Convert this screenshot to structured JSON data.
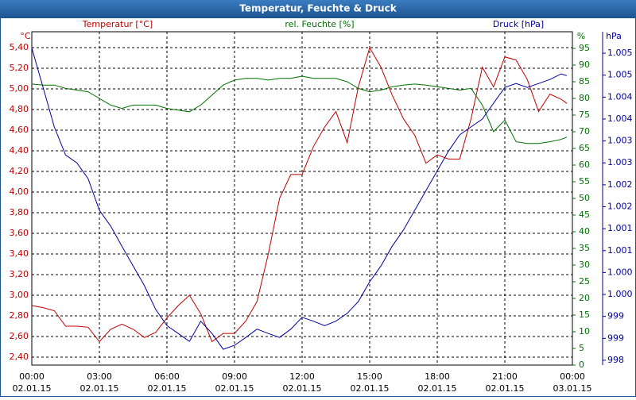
{
  "chart_data": {
    "type": "line",
    "title": "Temperatur, Feuchte & Druck",
    "x": [
      0,
      0.5,
      1,
      1.5,
      2,
      2.5,
      3,
      3.5,
      4,
      4.5,
      5,
      5.5,
      6,
      6.5,
      7,
      7.5,
      8,
      8.5,
      9,
      9.5,
      10,
      10.5,
      11,
      11.5,
      12,
      12.5,
      13,
      13.5,
      14,
      14.5,
      15,
      15.5,
      16,
      16.5,
      17,
      17.5,
      18,
      18.5,
      19,
      19.5,
      20,
      20.5,
      21,
      21.5,
      22,
      22.5,
      23,
      23.5,
      23.75
    ],
    "xlim": [
      0,
      24
    ],
    "xticks": [
      {
        "value": 0,
        "label": "00:00"
      },
      {
        "value": 3,
        "label": "03:00"
      },
      {
        "value": 6,
        "label": "06:00"
      },
      {
        "value": 9,
        "label": "09:00"
      },
      {
        "value": 12,
        "label": "12:00"
      },
      {
        "value": 15,
        "label": "15:00"
      },
      {
        "value": 18,
        "label": "18:00"
      },
      {
        "value": 21,
        "label": "21:00"
      },
      {
        "value": 24,
        "label": "00:00"
      }
    ],
    "xtick_dates": [
      "02.01.15",
      "02.01.15",
      "02.01.15",
      "02.01.15",
      "02.01.15",
      "02.01.15",
      "02.01.15",
      "02.01.15",
      "03.01.15"
    ],
    "axis_units": {
      "y": "°C",
      "y2": "%",
      "y3": "hPa"
    },
    "ylim": [
      2.323,
      5.554
    ],
    "yticks": [
      {
        "value": 2.4,
        "label": "2,40"
      },
      {
        "value": 2.6,
        "label": "2,60"
      },
      {
        "value": 2.8,
        "label": "2,80"
      },
      {
        "value": 3.0,
        "label": "3,00"
      },
      {
        "value": 3.2,
        "label": "3,20"
      },
      {
        "value": 3.4,
        "label": "3,40"
      },
      {
        "value": 3.6,
        "label": "3,60"
      },
      {
        "value": 3.8,
        "label": "3,80"
      },
      {
        "value": 4.0,
        "label": "4,00"
      },
      {
        "value": 4.2,
        "label": "4,20"
      },
      {
        "value": 4.4,
        "label": "4,40"
      },
      {
        "value": 4.6,
        "label": "4,60"
      },
      {
        "value": 4.8,
        "label": "4,80"
      },
      {
        "value": 5.0,
        "label": "5,00"
      },
      {
        "value": 5.2,
        "label": "5,20"
      },
      {
        "value": 5.4,
        "label": "5,40"
      }
    ],
    "y2lim": [
      0,
      100
    ],
    "y2ticks": [
      0,
      5,
      10,
      15,
      20,
      25,
      30,
      35,
      40,
      45,
      50,
      55,
      60,
      65,
      70,
      75,
      80,
      85,
      90,
      95
    ],
    "y3lim": [
      997.89,
      1005.49
    ],
    "y3ticks": [
      {
        "value": 998,
        "label": "998"
      },
      {
        "value": 998.5,
        "label": "999"
      },
      {
        "value": 999,
        "label": "999"
      },
      {
        "value": 999.5,
        "label": "1.000"
      },
      {
        "value": 1000,
        "label": "1.000"
      },
      {
        "value": 1000.5,
        "label": "1.001"
      },
      {
        "value": 1001,
        "label": "1.001"
      },
      {
        "value": 1001.5,
        "label": "1.002"
      },
      {
        "value": 1002,
        "label": "1.002"
      },
      {
        "value": 1002.5,
        "label": "1.003"
      },
      {
        "value": 1003,
        "label": "1.003"
      },
      {
        "value": 1003.5,
        "label": "1.004"
      },
      {
        "value": 1004,
        "label": "1.004"
      },
      {
        "value": 1004.5,
        "label": "1.005"
      },
      {
        "value": 1005,
        "label": "1.005"
      }
    ],
    "grid": true,
    "series": [
      {
        "name": "Temperatur [°C]",
        "color": "#c00000",
        "axis": "y",
        "values": [
          2.9,
          2.88,
          2.85,
          2.7,
          2.7,
          2.69,
          2.55,
          2.67,
          2.72,
          2.67,
          2.59,
          2.64,
          2.78,
          2.9,
          3.0,
          2.82,
          2.55,
          2.63,
          2.63,
          2.75,
          2.94,
          3.4,
          3.94,
          4.17,
          4.17,
          4.44,
          4.63,
          4.78,
          4.48,
          5.02,
          5.4,
          5.21,
          4.94,
          4.71,
          4.55,
          4.28,
          4.36,
          4.32,
          4.32,
          4.71,
          5.21,
          5.02,
          5.31,
          5.28,
          5.09,
          4.78,
          4.95,
          4.9,
          4.86
        ]
      },
      {
        "name": "rel. Feuchte [%]",
        "color": "#007000",
        "axis": "y2",
        "values": [
          84.3,
          84,
          84,
          83,
          82.5,
          82,
          80,
          78,
          77,
          78,
          78,
          78,
          77,
          76.5,
          76,
          78,
          81,
          84,
          85.5,
          86,
          86,
          85.5,
          86,
          86,
          86.7,
          86,
          86,
          86,
          85,
          83,
          82,
          82.5,
          83.5,
          84,
          84.3,
          84,
          83.5,
          83,
          82.5,
          83,
          78,
          70,
          73.5,
          67,
          66.5,
          66.5,
          67,
          67.7,
          68.4
        ]
      },
      {
        "name": "Druck [hPa]",
        "color": "#0000a0",
        "axis": "y3",
        "values": [
          1005.12,
          1004.22,
          1003.32,
          1002.68,
          1002.5,
          1002.14,
          1001.42,
          1001.06,
          1000.6,
          1000.15,
          999.7,
          999.16,
          998.79,
          998.61,
          998.43,
          998.89,
          998.61,
          998.25,
          998.34,
          998.52,
          998.71,
          998.61,
          998.52,
          998.71,
          998.98,
          998.89,
          998.79,
          998.89,
          999.07,
          999.34,
          999.79,
          1000.15,
          1000.6,
          1000.97,
          1001.42,
          1001.87,
          1002.32,
          1002.77,
          1003.14,
          1003.32,
          1003.5,
          1003.86,
          1004.22,
          1004.31,
          1004.22,
          1004.31,
          1004.4,
          1004.53,
          1004.49
        ]
      }
    ]
  }
}
